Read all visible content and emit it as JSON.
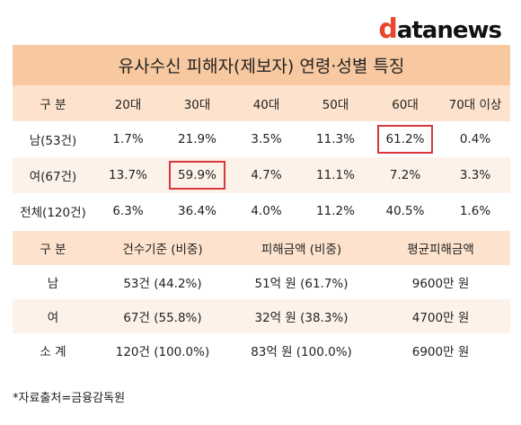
{
  "logo": {
    "d": "d",
    "ata": "ata",
    "news": "news"
  },
  "title": "유사수신 피해자(제보자) 연령·성별 특징",
  "age_table": {
    "headers": [
      "구  분",
      "20대",
      "30대",
      "40대",
      "50대",
      "60대",
      "70대 이상"
    ],
    "rows": [
      {
        "label": "남(53건)",
        "values": [
          "1.7%",
          "21.9%",
          "3.5%",
          "11.3%",
          "61.2%",
          "0.4%"
        ]
      },
      {
        "label": "여(67건)",
        "values": [
          "13.7%",
          "59.9%",
          "4.7%",
          "11.1%",
          "7.2%",
          "3.3%"
        ]
      },
      {
        "label": "전체(120건)",
        "values": [
          "6.3%",
          "36.4%",
          "4.0%",
          "11.2%",
          "40.5%",
          "1.6%"
        ]
      }
    ]
  },
  "amount_table": {
    "headers": [
      "구  분",
      "건수기준 (비중)",
      "피해금액 (비중)",
      "평균피해금액"
    ],
    "rows": [
      {
        "label": "남",
        "values": [
          "53건 (44.2%)",
          "51억 원 (61.7%)",
          "9600만 원"
        ]
      },
      {
        "label": "여",
        "values": [
          "67건 (55.8%)",
          "32억 원 (38.3%)",
          "4700만 원"
        ]
      },
      {
        "label": "소  계",
        "values": [
          "120건 (100.0%)",
          "83억 원 (100.0%)",
          "6900만 원"
        ]
      }
    ]
  },
  "footnote": "*자료출처=금융감독원",
  "colors": {
    "title_bg": "#f8c9a0",
    "header_bg": "#fde3cd",
    "band_bg": "#fdf2ea",
    "highlight": "#d9363e",
    "logo_accent": "#e8452c"
  }
}
